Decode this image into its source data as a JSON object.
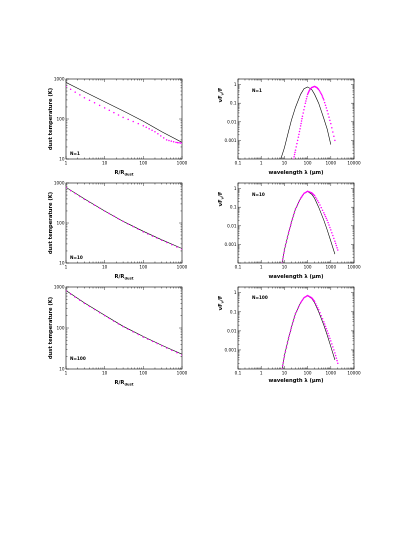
{
  "figure": {
    "panels": [
      {
        "id": "T1",
        "kind": "temperature",
        "label": "N=1"
      },
      {
        "id": "S1",
        "kind": "sed",
        "label": "N=1"
      },
      {
        "id": "T10",
        "kind": "temperature",
        "label": "N=10"
      },
      {
        "id": "S10",
        "kind": "sed",
        "label": "N=10"
      },
      {
        "id": "T100",
        "kind": "temperature",
        "label": "N=100"
      },
      {
        "id": "S100",
        "kind": "sed",
        "label": "N=100"
      }
    ]
  },
  "colors": {
    "model_line": "#000000",
    "dots": "#ff00ff"
  },
  "chart_data": [
    {
      "type": "line",
      "panel": "T1",
      "xlabel": "R/R",
      "xlabel_sub": "dust",
      "ylabel": "dust temperature (K)",
      "xscale": "log",
      "yscale": "log",
      "xlim": [
        1,
        1000
      ],
      "ylim": [
        10,
        1000
      ],
      "x_ticks": [
        "1",
        "10",
        "100",
        "1000"
      ],
      "y_ticks": [
        "10",
        "100",
        "1000"
      ],
      "annotation": "N=1",
      "series": [
        {
          "style": "line",
          "x": [
            1,
            3,
            10,
            30,
            100,
            300,
            1000
          ],
          "y": [
            820,
            480,
            270,
            160,
            88,
            48,
            26
          ]
        },
        {
          "style": "dots",
          "x": [
            1,
            3,
            10,
            30,
            100,
            200,
            400,
            700,
            1000
          ],
          "y": [
            650,
            340,
            190,
            110,
            68,
            48,
            30,
            26,
            25
          ]
        }
      ]
    },
    {
      "type": "line",
      "panel": "S1",
      "xlabel": "wavelength λ (μm)",
      "ylabel": "νF/F",
      "ylabel_sub": "ν",
      "xscale": "log",
      "yscale": "log",
      "xlim": [
        0.1,
        10000
      ],
      "ylim": [
        0.0001,
        2
      ],
      "x_ticks": [
        "0.1",
        "1",
        "10",
        "100",
        "1000",
        "10000"
      ],
      "y_ticks": [
        "0.001",
        "0.01",
        "0.1",
        "1"
      ],
      "annotation": "N=1",
      "series": [
        {
          "style": "line",
          "x": [
            7,
            10,
            15,
            20,
            30,
            50,
            70,
            100,
            150,
            200,
            300,
            500,
            700,
            1000
          ],
          "y": [
            0.0001,
            0.0004,
            0.003,
            0.012,
            0.06,
            0.3,
            0.6,
            0.75,
            0.55,
            0.3,
            0.1,
            0.015,
            0.004,
            0.0006
          ]
        },
        {
          "style": "dots",
          "x": [
            25,
            30,
            40,
            50,
            60,
            80,
            100,
            120,
            150,
            200,
            250,
            300,
            400,
            500,
            700,
            1000,
            1500
          ],
          "y": [
            0.0001,
            0.0003,
            0.0015,
            0.006,
            0.02,
            0.1,
            0.3,
            0.5,
            0.7,
            0.8,
            0.7,
            0.55,
            0.3,
            0.15,
            0.04,
            0.008,
            0.001
          ]
        }
      ]
    },
    {
      "type": "line",
      "panel": "T10",
      "xlabel": "R/R",
      "xlabel_sub": "dust",
      "ylabel": "dust temperature (K)",
      "xscale": "log",
      "yscale": "log",
      "xlim": [
        1,
        1000
      ],
      "ylim": [
        10,
        1000
      ],
      "x_ticks": [
        "1",
        "10",
        "100",
        "1000"
      ],
      "y_ticks": [
        "10",
        "100",
        "1000"
      ],
      "annotation": "N=10",
      "series": [
        {
          "style": "line",
          "x": [
            1,
            3,
            10,
            30,
            100,
            300,
            1000
          ],
          "y": [
            780,
            400,
            200,
            110,
            62,
            38,
            23
          ]
        },
        {
          "style": "dots",
          "x": [
            1,
            3,
            10,
            30,
            100,
            300,
            1000
          ],
          "y": [
            760,
            390,
            200,
            110,
            60,
            37,
            22
          ]
        }
      ]
    },
    {
      "type": "line",
      "panel": "S10",
      "xlabel": "wavelength λ (μm)",
      "ylabel": "νF/F",
      "ylabel_sub": "ν",
      "xscale": "log",
      "yscale": "log",
      "xlim": [
        0.1,
        10000
      ],
      "ylim": [
        0.0001,
        2
      ],
      "x_ticks": [
        "0.1",
        "1",
        "10",
        "100",
        "1000",
        "10000"
      ],
      "y_ticks": [
        "0.001",
        "0.01",
        "0.1",
        "1"
      ],
      "annotation": "N=10",
      "series": [
        {
          "style": "line",
          "x": [
            8,
            10,
            15,
            20,
            30,
            50,
            70,
            100,
            150,
            200,
            300,
            500,
            700,
            1000,
            1500
          ],
          "y": [
            0.0001,
            0.0005,
            0.004,
            0.015,
            0.08,
            0.3,
            0.55,
            0.7,
            0.5,
            0.3,
            0.1,
            0.02,
            0.006,
            0.0015,
            0.0003
          ]
        },
        {
          "style": "dots",
          "x": [
            8,
            10,
            15,
            20,
            30,
            50,
            70,
            100,
            150,
            200,
            300,
            500,
            700,
            1000,
            1500,
            2000
          ],
          "y": [
            0.0001,
            0.0005,
            0.004,
            0.015,
            0.08,
            0.3,
            0.55,
            0.72,
            0.6,
            0.42,
            0.18,
            0.05,
            0.02,
            0.006,
            0.0015,
            0.0005
          ]
        }
      ]
    },
    {
      "type": "line",
      "panel": "T100",
      "xlabel": "R/R",
      "xlabel_sub": "dust",
      "ylabel": "dust temperature (K)",
      "xscale": "log",
      "yscale": "log",
      "xlim": [
        1,
        1000
      ],
      "ylim": [
        10,
        1000
      ],
      "x_ticks": [
        "1",
        "10",
        "100",
        "1000"
      ],
      "y_ticks": [
        "10",
        "100",
        "1000"
      ],
      "annotation": "N=100",
      "series": [
        {
          "style": "line",
          "x": [
            1,
            3,
            10,
            30,
            100,
            300,
            1000
          ],
          "y": [
            820,
            410,
            205,
            110,
            62,
            38,
            23
          ]
        },
        {
          "style": "dots",
          "x": [
            1,
            3,
            10,
            30,
            100,
            300,
            1000
          ],
          "y": [
            800,
            400,
            200,
            108,
            60,
            37,
            22
          ]
        }
      ]
    },
    {
      "type": "line",
      "panel": "S100",
      "xlabel": "wavelength λ (μm)",
      "ylabel": "νF/F",
      "ylabel_sub": "ν",
      "xscale": "log",
      "yscale": "log",
      "xlim": [
        0.1,
        10000
      ],
      "ylim": [
        0.0001,
        2
      ],
      "x_ticks": [
        "0.1",
        "1",
        "10",
        "100",
        "1000",
        "10000"
      ],
      "y_ticks": [
        "0.001",
        "0.01",
        "0.1",
        "1"
      ],
      "annotation": "N=100",
      "series": [
        {
          "style": "line",
          "x": [
            8,
            10,
            15,
            20,
            30,
            50,
            70,
            100,
            150,
            200,
            300,
            500,
            700,
            1000,
            1500
          ],
          "y": [
            0.0001,
            0.0005,
            0.004,
            0.015,
            0.08,
            0.3,
            0.55,
            0.7,
            0.5,
            0.3,
            0.1,
            0.02,
            0.006,
            0.0015,
            0.0003
          ]
        },
        {
          "style": "dots",
          "x": [
            8,
            10,
            15,
            20,
            30,
            50,
            70,
            100,
            150,
            200,
            300,
            500,
            700,
            1000,
            1500,
            2000
          ],
          "y": [
            0.0001,
            0.0005,
            0.004,
            0.015,
            0.08,
            0.3,
            0.55,
            0.72,
            0.55,
            0.35,
            0.13,
            0.03,
            0.01,
            0.003,
            0.0007,
            0.0002
          ]
        }
      ]
    }
  ]
}
